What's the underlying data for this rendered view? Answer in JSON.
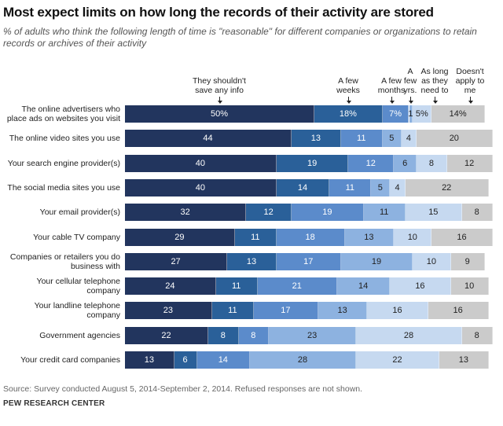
{
  "title": "Most expect limits on how long the records of their activity are stored",
  "subtitle": "% of adults who think the following length of time is \"reasonable\" for different companies or organizations to retain records or archives of their activity",
  "source": "Source: Survey conducted August 5, 2014-September 2, 2014. Refused responses are not shown.",
  "brand": "PEW RESEARCH CENTER",
  "chart_data": {
    "type": "bar",
    "orientation": "horizontal",
    "stacked": true,
    "series": [
      {
        "name": "They shouldn't save any info",
        "color": "#22355e",
        "values": [
          50,
          44,
          40,
          40,
          32,
          29,
          27,
          24,
          23,
          22,
          13
        ]
      },
      {
        "name": "A few weeks",
        "color": "#2a6099",
        "values": [
          18,
          13,
          19,
          14,
          12,
          11,
          13,
          11,
          11,
          8,
          6
        ]
      },
      {
        "name": "A few months",
        "color": "#5b8bcb",
        "values": [
          7,
          11,
          12,
          11,
          19,
          18,
          17,
          21,
          17,
          8,
          14
        ]
      },
      {
        "name": "A few yrs.",
        "color": "#8db2e0",
        "values": [
          1,
          5,
          6,
          5,
          11,
          13,
          19,
          14,
          13,
          23,
          28
        ]
      },
      {
        "name": "As long as they need to",
        "color": "#c6d9f0",
        "values": [
          5,
          4,
          8,
          4,
          15,
          10,
          10,
          16,
          16,
          28,
          22
        ]
      },
      {
        "name": "Doesn't apply to me",
        "color": "#cbcbcb",
        "values": [
          14,
          20,
          12,
          22,
          8,
          16,
          9,
          10,
          16,
          8,
          13
        ]
      }
    ],
    "categories": [
      "The online advertisers who place ads on websites you visit",
      "The online video sites you use",
      "Your search engine provider(s)",
      "The social media sites you use",
      "Your email provider(s)",
      "Your cable TV company",
      "Companies or retailers you do business with",
      "Your cellular telephone company",
      "Your landline telephone company",
      "Government agencies",
      "Your credit card companies"
    ],
    "first_row_labels": [
      "50%",
      "18%",
      "7%",
      "1",
      "5%",
      "14%"
    ],
    "xlim": [
      0,
      100
    ]
  }
}
